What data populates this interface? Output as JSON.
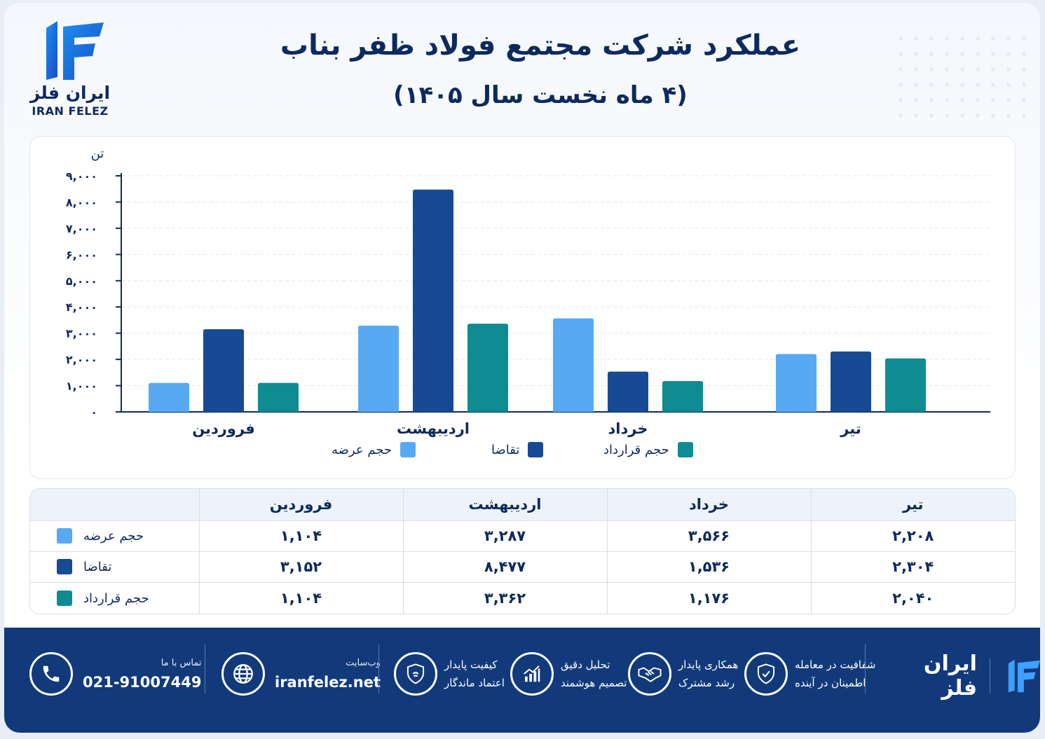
{
  "brand": {
    "name_fa": "ایران فلز",
    "name_en": "IRAN FELEZ"
  },
  "header": {
    "title": "عملکرد شرکت مجتمع فولاد ظفر بناب",
    "subtitle": "(۴ ماه نخست سال ۱۴۰۵)"
  },
  "chart_data": {
    "type": "bar",
    "ylabel": "تن",
    "ylim": [
      0,
      9000
    ],
    "yticks": [
      0,
      1000,
      2000,
      3000,
      4000,
      5000,
      6000,
      7000,
      8000,
      9000
    ],
    "ytick_labels": [
      "۰",
      "۱,۰۰۰",
      "۲,۰۰۰",
      "۳,۰۰۰",
      "۴,۰۰۰",
      "۵,۰۰۰",
      "۶,۰۰۰",
      "۷,۰۰۰",
      "۸,۰۰۰",
      "۹,۰۰۰"
    ],
    "categories": [
      "فروردین",
      "اردیبهشت",
      "خرداد",
      "تیر"
    ],
    "series": [
      {
        "name": "حجم عرضه",
        "color": "#57aaf2",
        "values": [
          1104,
          3287,
          3566,
          2208
        ]
      },
      {
        "name": "تقاضا",
        "color": "#164a94",
        "values": [
          3152,
          8477,
          1536,
          2304
        ]
      },
      {
        "name": "حجم قرارداد",
        "color": "#0e8c92",
        "values": [
          1104,
          3362,
          1176,
          2040
        ]
      }
    ],
    "grid": true,
    "legend_position": "bottom"
  },
  "table": {
    "headers": [
      "فروردین",
      "اردیبهشت",
      "خرداد",
      "تیر"
    ],
    "rows": [
      {
        "label": "حجم عرضه",
        "color": "#57aaf2",
        "values": [
          "۱,۱۰۴",
          "۳,۲۸۷",
          "۳,۵۶۶",
          "۲,۲۰۸"
        ]
      },
      {
        "label": "تقاضا",
        "color": "#164a94",
        "values": [
          "۳,۱۵۲",
          "۸,۴۷۷",
          "۱,۵۳۶",
          "۲,۳۰۴"
        ]
      },
      {
        "label": "حجم قرارداد",
        "color": "#0e8c92",
        "values": [
          "۱,۱۰۴",
          "۳,۳۶۲",
          "۱,۱۷۶",
          "۲,۰۴۰"
        ]
      }
    ]
  },
  "footer": {
    "contact": {
      "label": "تماس با ما",
      "value": "021-91007449",
      "icon": "phone-icon"
    },
    "website": {
      "label": "وب‌سایت",
      "value": "iranfelez.net",
      "icon": "globe-icon"
    },
    "features": [
      {
        "line1": "کیفیت پایدار",
        "line2": "اعتماد ماندگار",
        "icon": "shield-icon"
      },
      {
        "line1": "تحلیل دقیق",
        "line2": "تصمیم هوشمند",
        "icon": "chart-growth-icon"
      },
      {
        "line1": "همکاری پایدار",
        "line2": "رشد مشترک",
        "icon": "handshake-icon"
      },
      {
        "line1": "شفافیت در معامله",
        "line2": "اطمینان در آینده",
        "icon": "shield-check-icon"
      }
    ],
    "brand_name": "ایران فلز"
  }
}
